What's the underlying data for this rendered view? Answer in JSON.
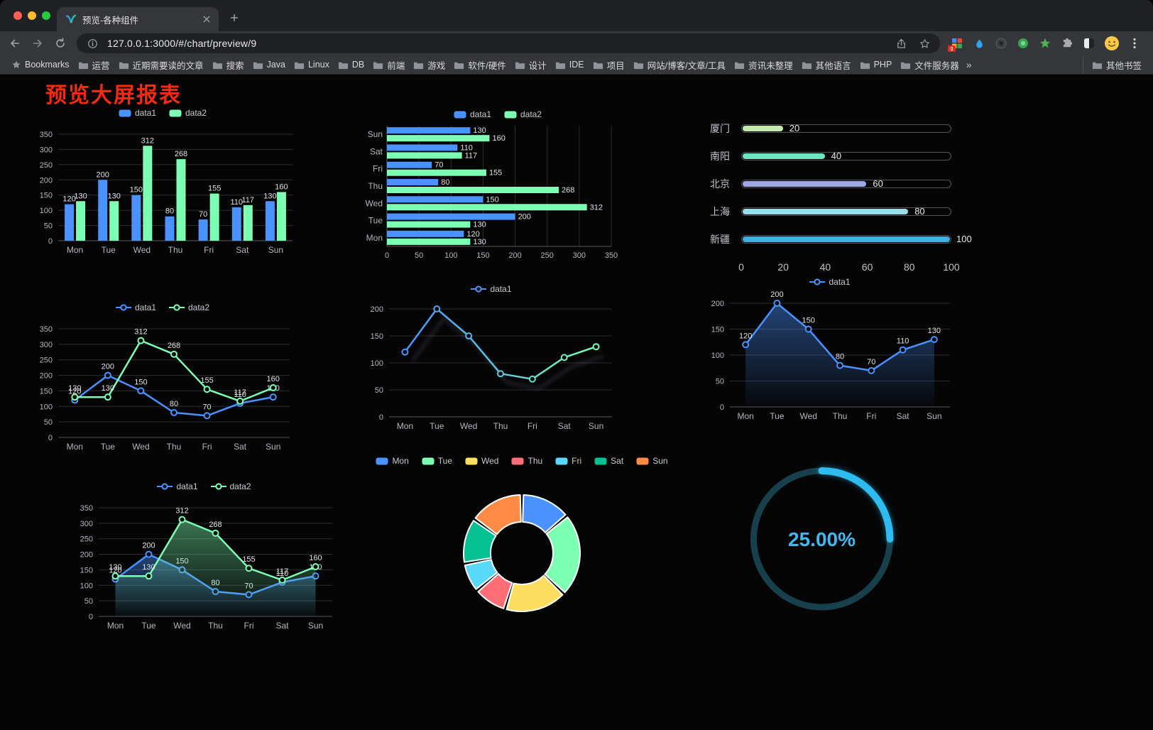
{
  "browser": {
    "tab": {
      "title": "预览-各种组件"
    },
    "url": "127.0.0.1:3000/#/chart/preview/9",
    "ext_badge": "g",
    "bookmarks_label": "Bookmarks",
    "bookmarks": [
      "运营",
      "近期需要读的文章",
      "搜索",
      "Java",
      "Linux",
      "DB",
      "前端",
      "游戏",
      "软件/硬件",
      "设计",
      "IDE",
      "项目",
      "网站/博客/文章/工具",
      "资讯未整理",
      "其他语言",
      "PHP",
      "文件服务器",
      "»"
    ],
    "other_bookmarks": "其他书签"
  },
  "page": {
    "title": "预览大屏报表"
  },
  "chart_data": [
    {
      "type": "bar",
      "categories": [
        "Mon",
        "Tue",
        "Wed",
        "Thu",
        "Fri",
        "Sat",
        "Sun"
      ],
      "series": [
        {
          "name": "data1",
          "color": "#4992ff",
          "values": [
            120,
            200,
            150,
            80,
            70,
            110,
            130
          ]
        },
        {
          "name": "data2",
          "color": "#7cffb2",
          "values": [
            130,
            130,
            312,
            268,
            155,
            117,
            160
          ]
        }
      ],
      "ylim": [
        0,
        350
      ],
      "ystep": 50,
      "legend": true,
      "labels": true
    },
    {
      "type": "hbar",
      "categories": [
        "Mon",
        "Tue",
        "Wed",
        "Thu",
        "Fri",
        "Sat",
        "Sun"
      ],
      "series": [
        {
          "name": "data1",
          "color": "#4992ff",
          "values": [
            120,
            200,
            150,
            80,
            70,
            110,
            130
          ]
        },
        {
          "name": "data2",
          "color": "#7cffb2",
          "values": [
            130,
            130,
            312,
            268,
            155,
            117,
            160
          ]
        }
      ],
      "xlim": [
        0,
        350
      ],
      "xstep": 50,
      "legend": true,
      "labels": true
    },
    {
      "type": "progress",
      "rows": [
        {
          "label": "厦门",
          "value": 20,
          "color": "#c4ebad"
        },
        {
          "label": "南阳",
          "value": 40,
          "color": "#6be6c1"
        },
        {
          "label": "北京",
          "value": 60,
          "color": "#a0a7e6"
        },
        {
          "label": "上海",
          "value": 80,
          "color": "#96dee8"
        },
        {
          "label": "新疆",
          "value": 100,
          "color": "#3fb1e3"
        }
      ],
      "max": 100,
      "axis_ticks": [
        0,
        20,
        40,
        60,
        80,
        100
      ]
    },
    {
      "type": "line",
      "categories": [
        "Mon",
        "Tue",
        "Wed",
        "Thu",
        "Fri",
        "Sat",
        "Sun"
      ],
      "series": [
        {
          "name": "data1",
          "color": "#4992ff",
          "values": [
            120,
            200,
            150,
            80,
            70,
            110,
            130
          ]
        },
        {
          "name": "data2",
          "color": "#7cffb2",
          "values": [
            130,
            130,
            312,
            268,
            155,
            117,
            160
          ]
        }
      ],
      "ylim": [
        0,
        350
      ],
      "ystep": 50,
      "legend": true,
      "labels": true
    },
    {
      "type": "line",
      "categories": [
        "Mon",
        "Tue",
        "Wed",
        "Thu",
        "Fri",
        "Sat",
        "Sun"
      ],
      "series": [
        {
          "name": "data1",
          "color": "#4992ff",
          "gradient": [
            "#4992ff",
            "#7cffb2"
          ],
          "values": [
            120,
            200,
            150,
            80,
            70,
            110,
            130
          ]
        }
      ],
      "ylim": [
        0,
        200
      ],
      "ystep": 50,
      "legend": true,
      "labels": false,
      "shadow": true
    },
    {
      "type": "line",
      "categories": [
        "Mon",
        "Tue",
        "Wed",
        "Thu",
        "Fri",
        "Sat",
        "Sun"
      ],
      "series": [
        {
          "name": "data1",
          "color": "#4992ff",
          "area": true,
          "values": [
            120,
            200,
            150,
            80,
            70,
            110,
            130
          ]
        }
      ],
      "ylim": [
        0,
        200
      ],
      "ystep": 50,
      "legend": true,
      "labels": true
    },
    {
      "type": "line",
      "categories": [
        "Mon",
        "Tue",
        "Wed",
        "Thu",
        "Fri",
        "Sat",
        "Sun"
      ],
      "series": [
        {
          "name": "data1",
          "color": "#4992ff",
          "area": true,
          "values": [
            120,
            200,
            150,
            80,
            70,
            110,
            130
          ]
        },
        {
          "name": "data2",
          "color": "#7cffb2",
          "area": true,
          "values": [
            130,
            130,
            312,
            268,
            155,
            117,
            160
          ]
        }
      ],
      "ylim": [
        0,
        350
      ],
      "ystep": 50,
      "legend": true,
      "labels": true
    },
    {
      "type": "pie",
      "legend": true,
      "items": [
        {
          "name": "Mon",
          "value": 120,
          "color": "#4992ff"
        },
        {
          "name": "Tue",
          "value": 200,
          "color": "#7cffb2"
        },
        {
          "name": "Wed",
          "value": 150,
          "color": "#fddd60"
        },
        {
          "name": "Thu",
          "value": 80,
          "color": "#ff6e76"
        },
        {
          "name": "Fri",
          "value": 70,
          "color": "#58d9f9"
        },
        {
          "name": "Sat",
          "value": 110,
          "color": "#05c091"
        },
        {
          "name": "Sun",
          "value": 130,
          "color": "#ff8a45"
        }
      ]
    },
    {
      "type": "gauge",
      "value": 25,
      "label": "25.00%",
      "color": "#2fbcf0",
      "track_color": "#17404c",
      "text_color": "#3fb9ef"
    }
  ]
}
